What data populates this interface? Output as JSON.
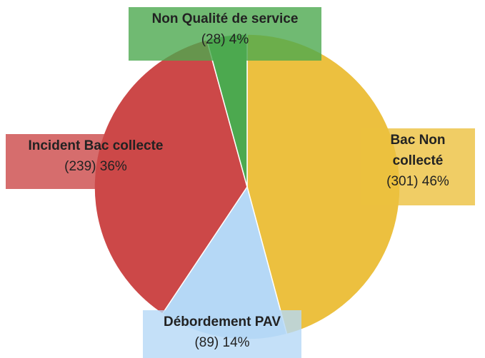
{
  "chart_data": {
    "type": "pie",
    "categories": [
      "Bac Non collecté",
      "Débordement PAV",
      "Incident Bac collecte",
      "Non Qualité de service"
    ],
    "values": [
      301,
      89,
      239,
      28
    ],
    "value_labels": [
      "(301) 46%",
      "(89) 14%",
      "(239) 36%",
      "(28) 4%"
    ],
    "colors": [
      "#ecc03f",
      "#b5d8f6",
      "#cc4848",
      "#4ca94f"
    ]
  }
}
